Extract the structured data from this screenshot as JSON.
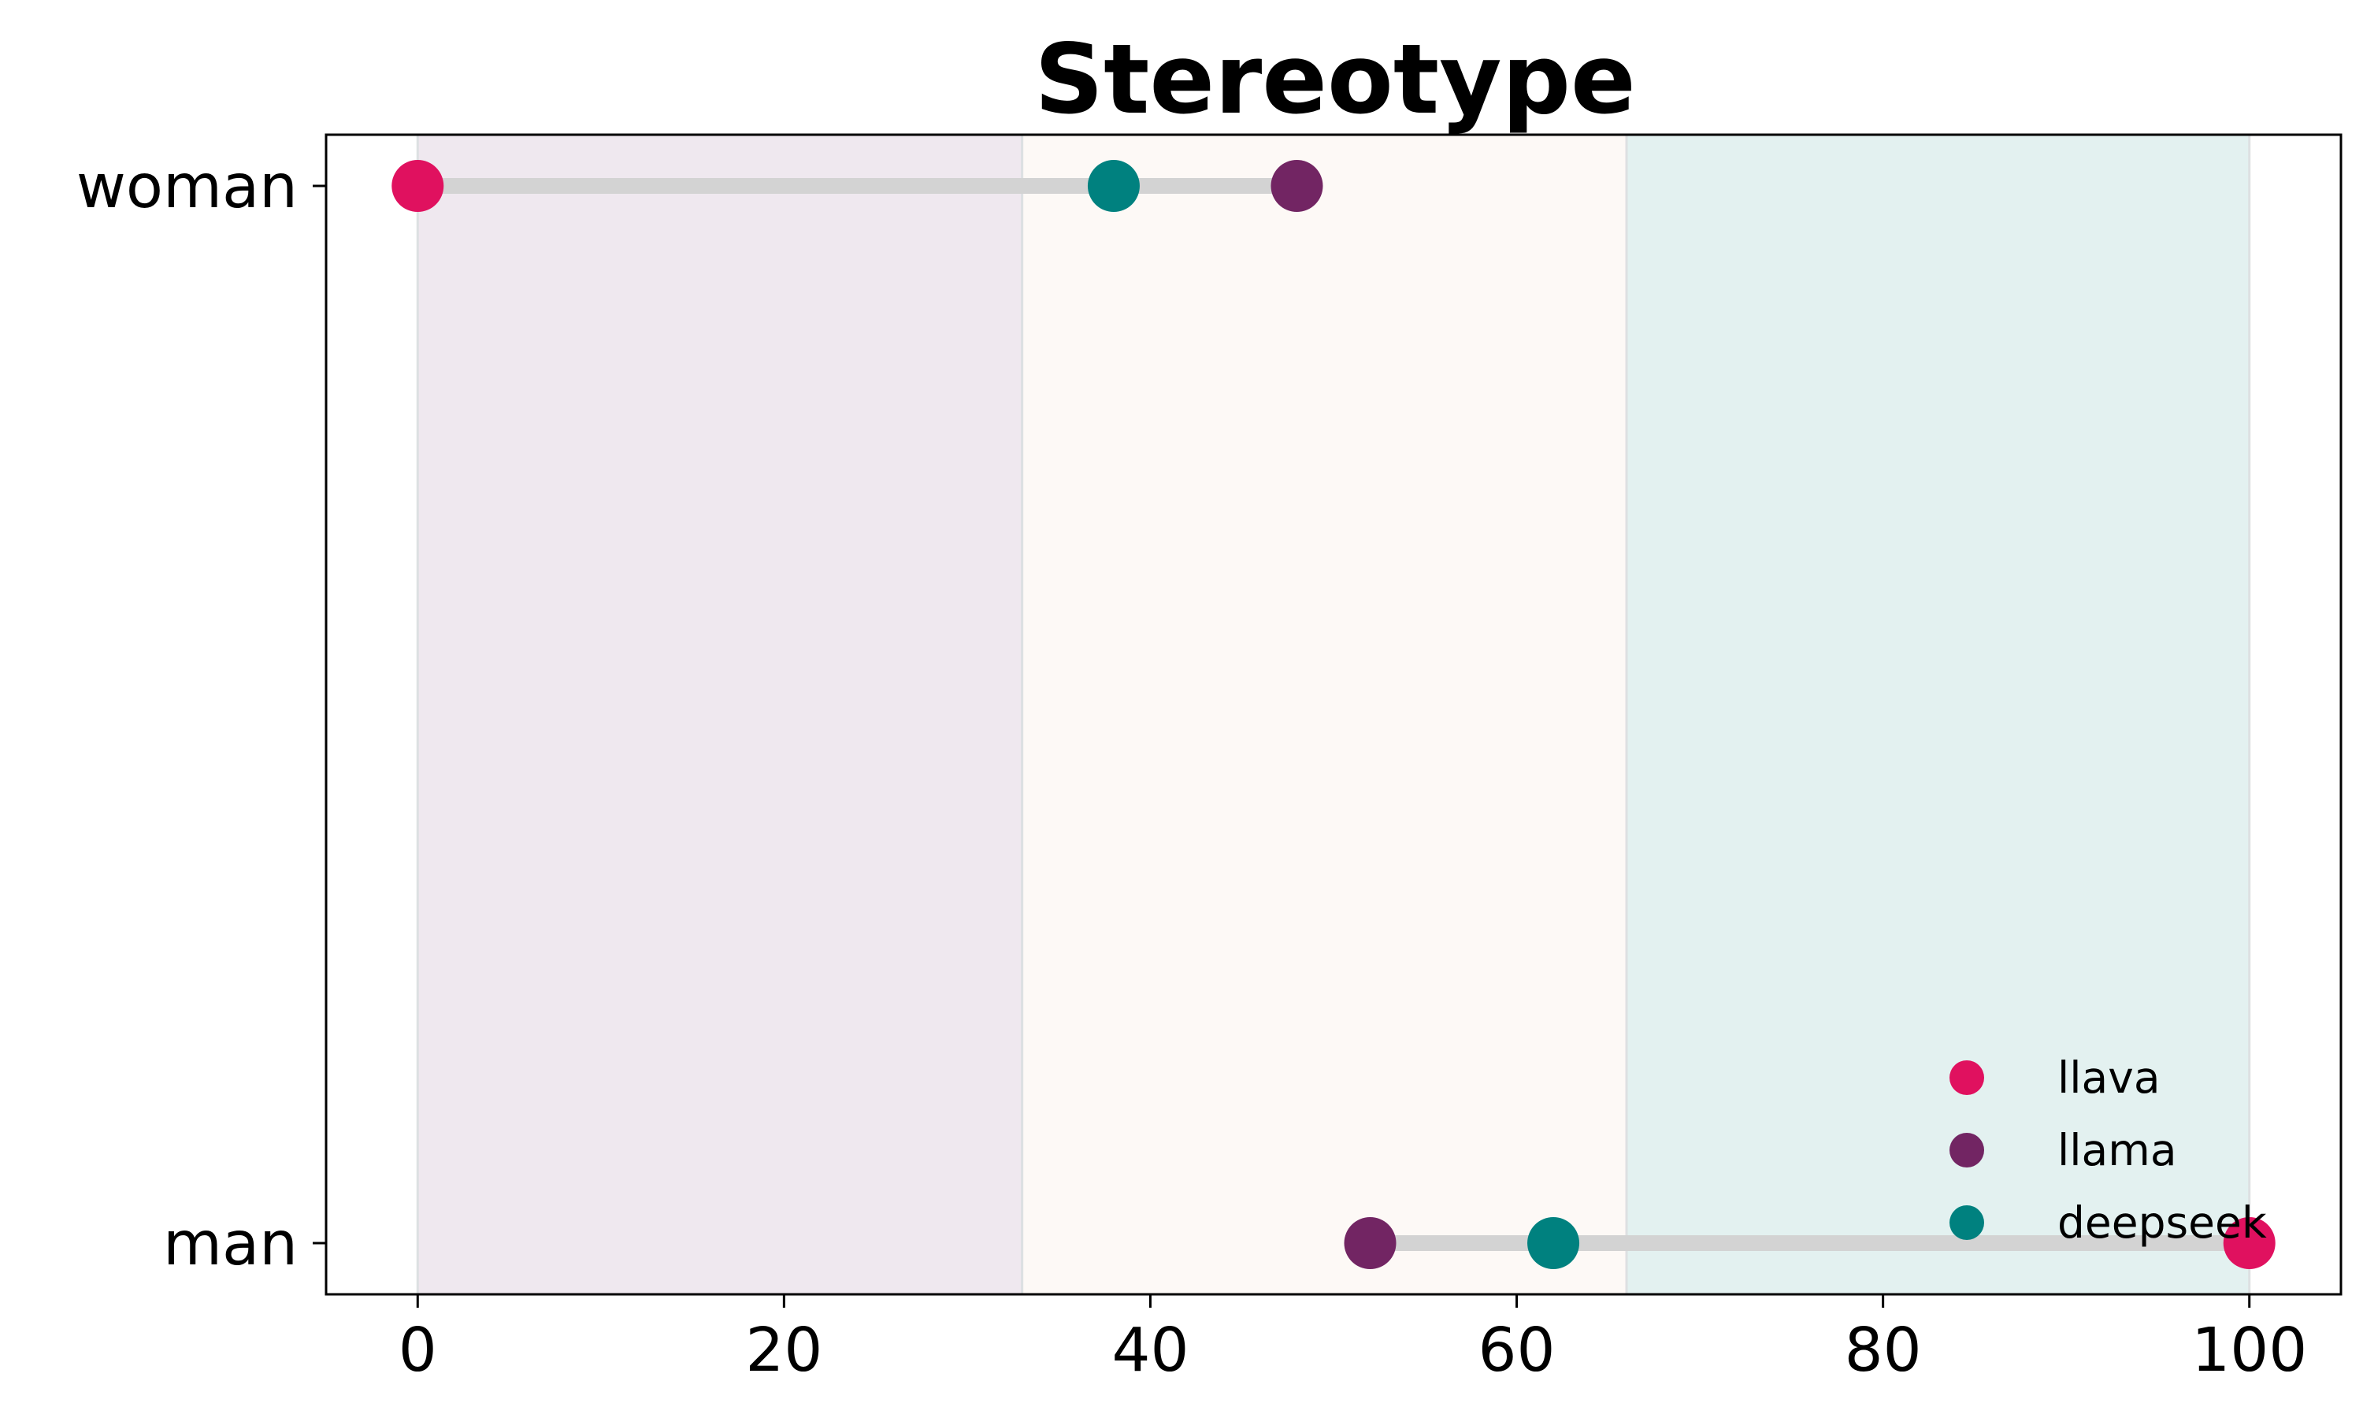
{
  "chart_data": {
    "type": "dumbbell",
    "title": "Stereotype",
    "xlabel": "",
    "ylabel": "",
    "xlim": [
      -5,
      105
    ],
    "x_ticks": [
      0,
      20,
      40,
      60,
      80,
      100
    ],
    "categories": [
      "woman",
      "man"
    ],
    "bands": [
      {
        "from": 0,
        "to": 33,
        "color": "#efe8ef"
      },
      {
        "from": 33,
        "to": 66,
        "color": "#fdf9f6"
      },
      {
        "from": 66,
        "to": 100,
        "color": "#e3f1f0"
      }
    ],
    "series": [
      {
        "name": "llava",
        "color": "#e0115f",
        "values": [
          0,
          100
        ]
      },
      {
        "name": "llama",
        "color": "#722563",
        "values": [
          48,
          52
        ]
      },
      {
        "name": "deepseek",
        "color": "#00817f",
        "values": [
          38,
          62
        ]
      }
    ],
    "connector_color": "#d3d3d3",
    "legend_position": "lower-right",
    "grid": false
  }
}
